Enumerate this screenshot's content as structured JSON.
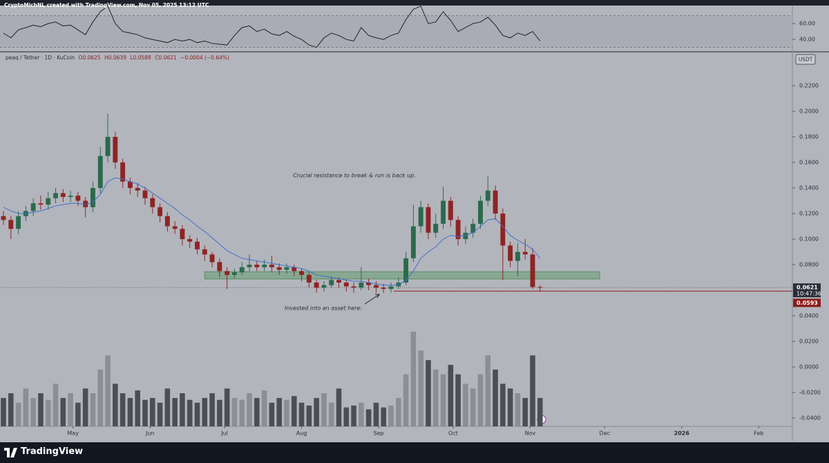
{
  "header": "CryptoMichNL created with TradingView.com, Nov 05, 2025 13:12 UTC",
  "chart_data": {
    "type": "candlestick",
    "symbol": "peaq / Tether · 1D · KuCoin",
    "ohlc_text": [
      "O0.0625",
      "H0.0639",
      "L0.0588",
      "C0.0621",
      "−0.0004 (−0.64%)"
    ],
    "currency": "USDT",
    "up_color": "#2b6a4c",
    "down_color": "#8e2424",
    "ema_color": "#3f6fd0",
    "xlim": [
      0,
      317
    ],
    "xticks": [
      {
        "value": 28,
        "label": "May"
      },
      {
        "value": 59,
        "label": "Jun"
      },
      {
        "value": 89,
        "label": "Jul"
      },
      {
        "value": 120,
        "label": "Aug"
      },
      {
        "value": 151,
        "label": "Sep"
      },
      {
        "value": 181,
        "label": "Oct"
      },
      {
        "value": 212,
        "label": "Nov"
      },
      {
        "value": 242,
        "label": "Dec"
      },
      {
        "value": 273,
        "label": "2026"
      },
      {
        "value": 304,
        "label": "Feb"
      }
    ],
    "ylim": [
      -0.0465,
      0.2449
    ],
    "yticks": [
      {
        "value": 0.22,
        "label": "0.2200"
      },
      {
        "value": 0.2,
        "label": "0.2000"
      },
      {
        "value": 0.18,
        "label": "0.1800"
      },
      {
        "value": 0.16,
        "label": "0.1600"
      },
      {
        "value": 0.14,
        "label": "0.1400"
      },
      {
        "value": 0.12,
        "label": "0.1200"
      },
      {
        "value": 0.1,
        "label": "0.1000"
      },
      {
        "value": 0.08,
        "label": "0.0800"
      },
      {
        "value": 0.04,
        "label": "0.0400"
      },
      {
        "value": 0.02,
        "label": "0.0200"
      },
      {
        "value": 0,
        "label": "0.0000"
      },
      {
        "value": -0.02,
        "label": "-0.0200"
      },
      {
        "value": -0.04,
        "label": "-0.0400"
      }
    ],
    "x": [
      0,
      3,
      6,
      9,
      12,
      15,
      18,
      21,
      24,
      27,
      30,
      33,
      36,
      39,
      42,
      45,
      48,
      51,
      54,
      57,
      60,
      63,
      66,
      69,
      72,
      75,
      78,
      81,
      84,
      87,
      90,
      93,
      96,
      99,
      102,
      105,
      108,
      111,
      114,
      117,
      120,
      123,
      126,
      129,
      132,
      135,
      138,
      141,
      144,
      147,
      150,
      153,
      156,
      159,
      162,
      165,
      168,
      171,
      174,
      177,
      180,
      183,
      186,
      189,
      192,
      195,
      198,
      201,
      204,
      207,
      210,
      213,
      216
    ],
    "ohlc": [
      [
        0.118,
        0.122,
        0.111,
        0.115
      ],
      [
        0.115,
        0.118,
        0.1,
        0.108
      ],
      [
        0.108,
        0.122,
        0.104,
        0.118
      ],
      [
        0.118,
        0.126,
        0.114,
        0.122
      ],
      [
        0.122,
        0.132,
        0.118,
        0.128
      ],
      [
        0.128,
        0.134,
        0.123,
        0.127
      ],
      [
        0.127,
        0.137,
        0.123,
        0.132
      ],
      [
        0.132,
        0.14,
        0.128,
        0.136
      ],
      [
        0.136,
        0.139,
        0.129,
        0.133
      ],
      [
        0.133,
        0.138,
        0.129,
        0.134
      ],
      [
        0.134,
        0.137,
        0.126,
        0.13
      ],
      [
        0.13,
        0.133,
        0.117,
        0.125
      ],
      [
        0.125,
        0.145,
        0.121,
        0.14
      ],
      [
        0.14,
        0.172,
        0.136,
        0.165
      ],
      [
        0.165,
        0.198,
        0.16,
        0.18
      ],
      [
        0.18,
        0.184,
        0.155,
        0.16
      ],
      [
        0.16,
        0.163,
        0.14,
        0.145
      ],
      [
        0.145,
        0.148,
        0.135,
        0.14
      ],
      [
        0.14,
        0.144,
        0.133,
        0.138
      ],
      [
        0.138,
        0.141,
        0.127,
        0.132
      ],
      [
        0.132,
        0.135,
        0.12,
        0.125
      ],
      [
        0.125,
        0.128,
        0.113,
        0.118
      ],
      [
        0.118,
        0.121,
        0.106,
        0.11
      ],
      [
        0.11,
        0.114,
        0.104,
        0.108
      ],
      [
        0.108,
        0.111,
        0.095,
        0.1
      ],
      [
        0.1,
        0.103,
        0.093,
        0.098
      ],
      [
        0.098,
        0.101,
        0.088,
        0.092
      ],
      [
        0.092,
        0.095,
        0.083,
        0.088
      ],
      [
        0.088,
        0.09,
        0.078,
        0.082
      ],
      [
        0.082,
        0.085,
        0.07,
        0.075
      ],
      [
        0.075,
        0.078,
        0.061,
        0.072
      ],
      [
        0.072,
        0.077,
        0.069,
        0.074
      ],
      [
        0.074,
        0.082,
        0.072,
        0.078
      ],
      [
        0.078,
        0.088,
        0.075,
        0.08
      ],
      [
        0.08,
        0.083,
        0.075,
        0.078
      ],
      [
        0.078,
        0.084,
        0.075,
        0.08
      ],
      [
        0.08,
        0.087,
        0.074,
        0.078
      ],
      [
        0.078,
        0.081,
        0.072,
        0.076
      ],
      [
        0.076,
        0.081,
        0.073,
        0.078
      ],
      [
        0.078,
        0.08,
        0.071,
        0.075
      ],
      [
        0.075,
        0.077,
        0.067,
        0.072
      ],
      [
        0.072,
        0.074,
        0.062,
        0.066
      ],
      [
        0.066,
        0.068,
        0.058,
        0.062
      ],
      [
        0.062,
        0.067,
        0.059,
        0.064
      ],
      [
        0.064,
        0.071,
        0.062,
        0.068
      ],
      [
        0.068,
        0.07,
        0.062,
        0.066
      ],
      [
        0.066,
        0.068,
        0.059,
        0.063
      ],
      [
        0.063,
        0.066,
        0.058,
        0.062
      ],
      [
        0.062,
        0.078,
        0.06,
        0.066
      ],
      [
        0.066,
        0.069,
        0.06,
        0.064
      ],
      [
        0.064,
        0.067,
        0.058,
        0.062
      ],
      [
        0.062,
        0.065,
        0.058,
        0.061
      ],
      [
        0.061,
        0.066,
        0.058,
        0.063
      ],
      [
        0.063,
        0.07,
        0.061,
        0.066
      ],
      [
        0.066,
        0.09,
        0.064,
        0.085
      ],
      [
        0.085,
        0.127,
        0.082,
        0.11
      ],
      [
        0.11,
        0.13,
        0.105,
        0.125
      ],
      [
        0.125,
        0.128,
        0.1,
        0.105
      ],
      [
        0.105,
        0.12,
        0.101,
        0.112
      ],
      [
        0.112,
        0.141,
        0.108,
        0.13
      ],
      [
        0.13,
        0.133,
        0.11,
        0.115
      ],
      [
        0.115,
        0.118,
        0.095,
        0.1
      ],
      [
        0.1,
        0.11,
        0.096,
        0.105
      ],
      [
        0.105,
        0.116,
        0.101,
        0.112
      ],
      [
        0.112,
        0.134,
        0.108,
        0.13
      ],
      [
        0.13,
        0.149,
        0.126,
        0.138
      ],
      [
        0.138,
        0.142,
        0.115,
        0.12
      ],
      [
        0.12,
        0.124,
        0.068,
        0.095
      ],
      [
        0.095,
        0.098,
        0.078,
        0.083
      ],
      [
        0.083,
        0.097,
        0.071,
        0.09
      ],
      [
        0.09,
        0.1,
        0.084,
        0.088
      ],
      [
        0.088,
        0.093,
        0.061,
        0.0625
      ],
      [
        0.0625,
        0.0639,
        0.0588,
        0.0621
      ]
    ],
    "ema": [
      0.125,
      0.122,
      0.12,
      0.12,
      0.121,
      0.122,
      0.124,
      0.126,
      0.127,
      0.128,
      0.128,
      0.127,
      0.129,
      0.135,
      0.145,
      0.148,
      0.147,
      0.145,
      0.143,
      0.14,
      0.136,
      0.132,
      0.128,
      0.124,
      0.119,
      0.115,
      0.11,
      0.106,
      0.101,
      0.096,
      0.091,
      0.088,
      0.085,
      0.084,
      0.083,
      0.082,
      0.081,
      0.08,
      0.079,
      0.078,
      0.077,
      0.075,
      0.072,
      0.071,
      0.07,
      0.069,
      0.068,
      0.067,
      0.067,
      0.066,
      0.065,
      0.064,
      0.064,
      0.064,
      0.068,
      0.075,
      0.085,
      0.09,
      0.094,
      0.1,
      0.103,
      0.102,
      0.103,
      0.105,
      0.11,
      0.115,
      0.116,
      0.11,
      0.103,
      0.099,
      0.096,
      0.092,
      0.085
    ],
    "volume": [
      30,
      35,
      25,
      40,
      30,
      35,
      28,
      45,
      30,
      35,
      25,
      40,
      35,
      60,
      75,
      45,
      35,
      30,
      38,
      28,
      30,
      25,
      40,
      30,
      35,
      28,
      25,
      30,
      35,
      28,
      40,
      30,
      28,
      35,
      30,
      38,
      25,
      30,
      28,
      32,
      25,
      22,
      30,
      35,
      25,
      40,
      20,
      22,
      25,
      18,
      25,
      20,
      22,
      30,
      55,
      100,
      80,
      70,
      60,
      55,
      65,
      55,
      45,
      40,
      55,
      75,
      60,
      45,
      40,
      35,
      30,
      75,
      30
    ],
    "zone": {
      "x": [
        81,
        240
      ],
      "y": [
        0.0688,
        0.0745
      ],
      "color": "#7fa68a"
    },
    "last_price": 0.0621,
    "countdown": "10:47:36",
    "support": {
      "x": 157,
      "value": 0.0593,
      "color": "#8e1c1c"
    },
    "annotations": [
      "Crucial resistance to break & run is back up.",
      "Invested into an asset here:"
    ],
    "rsi": {
      "ylim": [
        27,
        81
      ],
      "yticks": [
        {
          "value": 60,
          "label": "60.00"
        },
        {
          "value": 40,
          "label": "40.00"
        }
      ],
      "bands": [
        70,
        30
      ],
      "color": "#1f2024",
      "values": [
        48,
        42,
        52,
        55,
        58,
        56,
        60,
        62,
        57,
        58,
        52,
        46,
        62,
        75,
        82,
        60,
        50,
        48,
        46,
        42,
        40,
        38,
        36,
        40,
        38,
        40,
        36,
        38,
        35,
        34,
        33,
        45,
        55,
        57,
        50,
        53,
        47,
        45,
        50,
        44,
        40,
        33,
        30,
        42,
        48,
        45,
        40,
        38,
        55,
        45,
        42,
        40,
        45,
        48,
        65,
        78,
        82,
        60,
        62,
        75,
        64,
        50,
        55,
        60,
        62,
        68,
        58,
        45,
        42,
        48,
        45,
        50,
        38
      ]
    }
  },
  "footer": "TradingView"
}
